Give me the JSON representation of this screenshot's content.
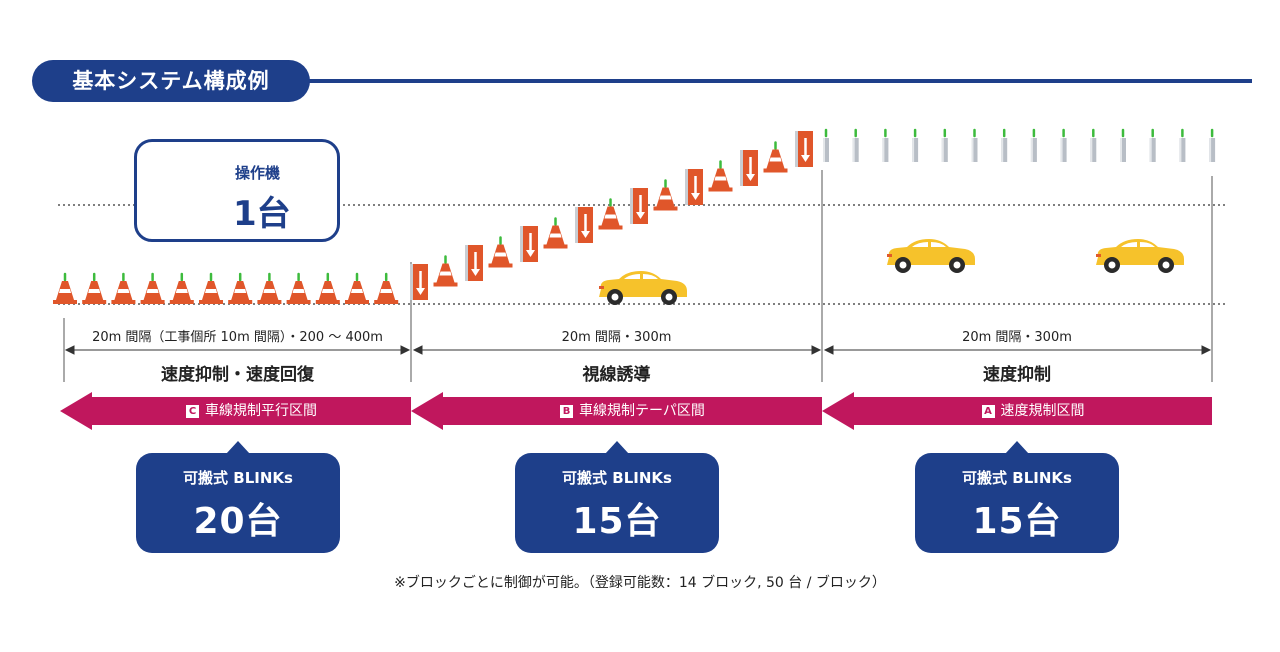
{
  "header": {
    "title": "基本システム構成例"
  },
  "controller": {
    "label": "操作機",
    "count": "1台"
  },
  "sections": [
    {
      "distance": "20m 間隔（工事個所 10m 間隔）・200 〜 400m",
      "title": "速度抑制・速度回復",
      "zone_badge": "C",
      "zone_label": "車線規制平行区間",
      "callout_label": "可搬式 BLINKs",
      "callout_count": "20台"
    },
    {
      "distance": "20m 間隔・300m",
      "title": "視線誘導",
      "zone_badge": "B",
      "zone_label": "車線規制テーパ区間",
      "callout_label": "可搬式 BLINKs",
      "callout_count": "15台"
    },
    {
      "distance": "20m 間隔・300m",
      "title": "速度抑制",
      "zone_badge": "A",
      "zone_label": "速度規制区間",
      "callout_label": "可搬式 BLINKs",
      "callout_count": "15台"
    }
  ],
  "footnote": "※ブロックごとに制御が可能。（登録可能数：14 ブロック, 50 台 / ブロック）",
  "colors": {
    "navy": "#1e3f8a",
    "magenta": "#c0175d",
    "cone": "#e0562a",
    "car": "#f6c22b",
    "lamp": "#3dbb3d"
  },
  "icons": [
    "remote-controller-icon",
    "traffic-cone-icon",
    "arrow-sign-icon",
    "car-icon",
    "delineator-post-icon"
  ]
}
